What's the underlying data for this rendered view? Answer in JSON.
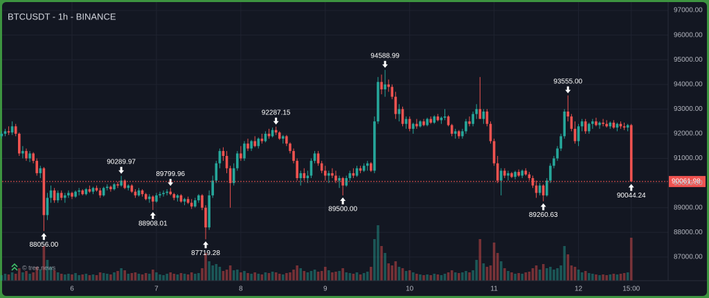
{
  "chart_data": {
    "type": "candlestick",
    "title": "BTCUSDT - 1h - BINANCE",
    "watermark": "© tree.news",
    "up_color": "#26a69a",
    "down_color": "#ef5350",
    "grid": true,
    "ylim": [
      86040,
      97340
    ],
    "yticks": [
      {
        "value": 87000,
        "label": "87000.00"
      },
      {
        "value": 88000,
        "label": "88000.00"
      },
      {
        "value": 89000,
        "label": "89000.00"
      },
      {
        "value": 90000,
        "label": "90000.00"
      },
      {
        "value": 91000,
        "label": "91000.00"
      },
      {
        "value": 92000,
        "label": "92000.00"
      },
      {
        "value": 93000,
        "label": "93000.00"
      },
      {
        "value": 94000,
        "label": "94000.00"
      },
      {
        "value": 95000,
        "label": "95000.00"
      },
      {
        "value": 96000,
        "label": "96000.00"
      },
      {
        "value": 97000,
        "label": "97000.00"
      }
    ],
    "xticks": [
      {
        "at": 20,
        "label": "6"
      },
      {
        "at": 44,
        "label": "7"
      },
      {
        "at": 68,
        "label": "8"
      },
      {
        "at": 92,
        "label": "9"
      },
      {
        "at": 116,
        "label": "10"
      },
      {
        "at": 140,
        "label": "11"
      },
      {
        "at": 164,
        "label": "12"
      },
      {
        "at": 179,
        "label": "15:00"
      }
    ],
    "last_label": "90061.98",
    "extremes": [
      {
        "at": 12,
        "side": "low",
        "label": "88056.00"
      },
      {
        "at": 34,
        "side": "high",
        "label": "90289.97"
      },
      {
        "at": 43,
        "side": "low",
        "label": "88908.01"
      },
      {
        "at": 48,
        "side": "high",
        "label": "89799.96"
      },
      {
        "at": 58,
        "side": "low",
        "label": "87719.28"
      },
      {
        "at": 78,
        "side": "high",
        "label": "92287.15"
      },
      {
        "at": 97,
        "side": "low",
        "label": "89500.00"
      },
      {
        "at": 109,
        "side": "high",
        "label": "94588.99"
      },
      {
        "at": 154,
        "side": "low",
        "label": "89260.63"
      },
      {
        "at": 161,
        "side": "high",
        "label": "93555.00"
      },
      {
        "at": 179,
        "side": "low",
        "label": "90044.24"
      }
    ],
    "candles": [
      [
        91900,
        92100,
        91800,
        92000,
        8
      ],
      [
        92000,
        92200,
        91900,
        92100,
        10
      ],
      [
        92100,
        92300,
        91950,
        92050,
        9
      ],
      [
        92050,
        92500,
        91950,
        92300,
        12
      ],
      [
        92300,
        92400,
        91900,
        92000,
        10
      ],
      [
        92000,
        92050,
        91100,
        91200,
        18
      ],
      [
        91200,
        91500,
        91000,
        91300,
        12
      ],
      [
        91300,
        91400,
        90900,
        91000,
        14
      ],
      [
        91000,
        91300,
        90850,
        91200,
        10
      ],
      [
        91200,
        91250,
        90800,
        90900,
        12
      ],
      [
        90900,
        91000,
        90300,
        90400,
        20
      ],
      [
        90400,
        90700,
        90200,
        90600,
        16
      ],
      [
        90600,
        90650,
        88056,
        88700,
        50
      ],
      [
        88700,
        89600,
        88500,
        89400,
        30
      ],
      [
        89400,
        89900,
        89200,
        89700,
        20
      ],
      [
        89700,
        89800,
        89200,
        89300,
        15
      ],
      [
        89300,
        89700,
        89200,
        89600,
        12
      ],
      [
        89600,
        89700,
        89300,
        89400,
        10
      ],
      [
        89400,
        89600,
        89200,
        89500,
        9
      ],
      [
        89500,
        89700,
        89400,
        89600,
        10
      ],
      [
        89600,
        89650,
        89350,
        89450,
        9
      ],
      [
        89450,
        89700,
        89400,
        89650,
        11
      ],
      [
        89650,
        89800,
        89500,
        89700,
        8
      ],
      [
        89700,
        89750,
        89500,
        89550,
        9
      ],
      [
        89550,
        89800,
        89500,
        89750,
        10
      ],
      [
        89750,
        89900,
        89600,
        89650,
        8
      ],
      [
        89650,
        89850,
        89550,
        89800,
        9
      ],
      [
        89800,
        89900,
        89650,
        89700,
        8
      ],
      [
        89700,
        89800,
        89400,
        89500,
        12
      ],
      [
        89500,
        89850,
        89450,
        89800,
        11
      ],
      [
        89800,
        89950,
        89700,
        89850,
        10
      ],
      [
        89850,
        89900,
        89650,
        89750,
        9
      ],
      [
        89750,
        90000,
        89700,
        89950,
        12
      ],
      [
        89950,
        90050,
        89800,
        89900,
        14
      ],
      [
        89900,
        90289.97,
        89850,
        90100,
        18
      ],
      [
        90100,
        90150,
        89750,
        89800,
        15
      ],
      [
        89800,
        89950,
        89700,
        89900,
        10
      ],
      [
        89900,
        89950,
        89600,
        89650,
        11
      ],
      [
        89650,
        89750,
        89400,
        89500,
        12
      ],
      [
        89500,
        89800,
        89450,
        89700,
        10
      ],
      [
        89700,
        89750,
        89450,
        89550,
        9
      ],
      [
        89550,
        89600,
        89300,
        89350,
        11
      ],
      [
        89350,
        89550,
        89200,
        89450,
        10
      ],
      [
        89450,
        89500,
        88908.01,
        89250,
        16
      ],
      [
        89250,
        89600,
        89200,
        89500,
        12
      ],
      [
        89500,
        89650,
        89400,
        89550,
        9
      ],
      [
        89550,
        89700,
        89450,
        89600,
        8
      ],
      [
        89600,
        89750,
        89500,
        89650,
        10
      ],
      [
        89650,
        89799.96,
        89500,
        89550,
        12
      ],
      [
        89550,
        89600,
        89300,
        89400,
        10
      ],
      [
        89400,
        89550,
        89250,
        89500,
        9
      ],
      [
        89500,
        89550,
        89200,
        89250,
        11
      ],
      [
        89250,
        89400,
        89100,
        89350,
        10
      ],
      [
        89350,
        89450,
        89150,
        89200,
        9
      ],
      [
        89200,
        89350,
        88950,
        89050,
        12
      ],
      [
        89050,
        89400,
        89000,
        89300,
        10
      ],
      [
        89300,
        89550,
        89200,
        89500,
        11
      ],
      [
        89500,
        89550,
        88900,
        89000,
        18
      ],
      [
        89000,
        89100,
        87719.28,
        88200,
        40
      ],
      [
        88200,
        89700,
        88100,
        89500,
        28
      ],
      [
        89500,
        90300,
        89400,
        90100,
        22
      ],
      [
        90100,
        90900,
        90000,
        90800,
        24
      ],
      [
        90800,
        91400,
        90600,
        91300,
        20
      ],
      [
        91300,
        91450,
        90900,
        91100,
        14
      ],
      [
        91100,
        91300,
        90400,
        90600,
        16
      ],
      [
        90600,
        90700,
        89000,
        90000,
        22
      ],
      [
        90000,
        90800,
        89900,
        90600,
        15
      ],
      [
        90600,
        91300,
        90500,
        91200,
        16
      ],
      [
        91200,
        91500,
        90900,
        91000,
        12
      ],
      [
        91000,
        91700,
        90900,
        91600,
        14
      ],
      [
        91600,
        91800,
        91300,
        91400,
        11
      ],
      [
        91400,
        91750,
        91300,
        91700,
        10
      ],
      [
        91700,
        91900,
        91450,
        91500,
        12
      ],
      [
        91500,
        91850,
        91400,
        91800,
        10
      ],
      [
        91800,
        92000,
        91600,
        91700,
        9
      ],
      [
        91700,
        92100,
        91650,
        92000,
        12
      ],
      [
        92000,
        92200,
        91800,
        91900,
        11
      ],
      [
        91900,
        92250,
        91850,
        92150,
        13
      ],
      [
        92150,
        92287.15,
        91950,
        92050,
        12
      ],
      [
        92050,
        92100,
        91750,
        91800,
        10
      ],
      [
        91800,
        91950,
        91600,
        91900,
        9
      ],
      [
        91900,
        91950,
        91500,
        91600,
        11
      ],
      [
        91600,
        91650,
        91200,
        91300,
        12
      ],
      [
        91300,
        91400,
        90800,
        90900,
        16
      ],
      [
        90900,
        91000,
        90100,
        90200,
        22
      ],
      [
        90200,
        90500,
        89900,
        90400,
        18
      ],
      [
        90400,
        90600,
        90100,
        90200,
        14
      ],
      [
        90200,
        90500,
        90000,
        90300,
        12
      ],
      [
        90300,
        91000,
        90200,
        90900,
        14
      ],
      [
        90900,
        91300,
        90800,
        91200,
        16
      ],
      [
        91200,
        91300,
        90700,
        90800,
        13
      ],
      [
        90800,
        90900,
        90400,
        90500,
        14
      ],
      [
        90500,
        90700,
        90100,
        90300,
        20
      ],
      [
        90300,
        90500,
        90000,
        90400,
        15
      ],
      [
        90400,
        90600,
        90200,
        90300,
        12
      ],
      [
        90300,
        90500,
        90000,
        90100,
        13
      ],
      [
        90100,
        90300,
        89800,
        90200,
        14
      ],
      [
        90200,
        90250,
        89500,
        89900,
        18
      ],
      [
        89900,
        90300,
        89850,
        90200,
        12
      ],
      [
        90200,
        90500,
        90100,
        90400,
        11
      ],
      [
        90400,
        90600,
        90200,
        90300,
        10
      ],
      [
        90300,
        90700,
        90250,
        90600,
        12
      ],
      [
        90600,
        90700,
        90400,
        90500,
        9
      ],
      [
        90500,
        90800,
        90450,
        90700,
        11
      ],
      [
        90700,
        90900,
        90500,
        90800,
        13
      ],
      [
        90800,
        90850,
        90450,
        90500,
        20
      ],
      [
        90500,
        92700,
        90400,
        92500,
        60
      ],
      [
        92500,
        94300,
        92400,
        94100,
        80
      ],
      [
        94100,
        94400,
        93600,
        93800,
        50
      ],
      [
        93800,
        94588.99,
        93500,
        94000,
        40
      ],
      [
        94000,
        94200,
        93700,
        93900,
        25
      ],
      [
        93900,
        94000,
        93400,
        93500,
        22
      ],
      [
        93500,
        93700,
        92600,
        92800,
        28
      ],
      [
        92800,
        93200,
        92500,
        93000,
        20
      ],
      [
        93000,
        93100,
        92300,
        92400,
        18
      ],
      [
        92400,
        92700,
        92200,
        92600,
        14
      ],
      [
        92600,
        92700,
        92100,
        92200,
        15
      ],
      [
        92200,
        92450,
        92000,
        92400,
        12
      ],
      [
        92400,
        92600,
        92200,
        92300,
        10
      ],
      [
        92300,
        92550,
        92250,
        92500,
        9
      ],
      [
        92500,
        92600,
        92300,
        92350,
        8
      ],
      [
        92350,
        92650,
        92300,
        92600,
        9
      ],
      [
        92600,
        92700,
        92400,
        92450,
        8
      ],
      [
        92450,
        92750,
        92400,
        92700,
        10
      ],
      [
        92700,
        92800,
        92500,
        92550,
        9
      ],
      [
        92550,
        92700,
        92400,
        92650,
        8
      ],
      [
        92650,
        93000,
        92550,
        92700,
        10
      ],
      [
        92700,
        92750,
        92300,
        92350,
        12
      ],
      [
        92350,
        92400,
        91900,
        92000,
        15
      ],
      [
        92000,
        92200,
        91800,
        92100,
        12
      ],
      [
        92100,
        92150,
        91800,
        91900,
        11
      ],
      [
        91900,
        92200,
        91800,
        92100,
        12
      ],
      [
        92100,
        92600,
        92000,
        92500,
        14
      ],
      [
        92500,
        92700,
        92300,
        92400,
        12
      ],
      [
        92400,
        92900,
        92300,
        92800,
        15
      ],
      [
        92800,
        93200,
        92600,
        93000,
        30
      ],
      [
        93000,
        94300,
        92700,
        92600,
        60
      ],
      [
        92600,
        93000,
        92400,
        92900,
        25
      ],
      [
        92900,
        93000,
        92300,
        92400,
        20
      ],
      [
        92400,
        92500,
        91600,
        91700,
        22
      ],
      [
        91700,
        91800,
        90700,
        90800,
        55
      ],
      [
        90800,
        91100,
        90000,
        90100,
        40
      ],
      [
        90100,
        90600,
        89500,
        90500,
        28
      ],
      [
        90500,
        90600,
        90200,
        90300,
        18
      ],
      [
        90300,
        90500,
        90100,
        90400,
        14
      ],
      [
        90400,
        90450,
        90200,
        90250,
        12
      ],
      [
        90250,
        90500,
        90150,
        90450,
        10
      ],
      [
        90450,
        90550,
        90250,
        90300,
        11
      ],
      [
        90300,
        90550,
        90200,
        90500,
        10
      ],
      [
        90500,
        90600,
        90300,
        90350,
        12
      ],
      [
        90350,
        90450,
        90100,
        90200,
        13
      ],
      [
        90200,
        90300,
        89800,
        89900,
        18
      ],
      [
        89900,
        90100,
        89400,
        89600,
        22
      ],
      [
        89600,
        90000,
        89500,
        89900,
        16
      ],
      [
        89900,
        89950,
        89260.63,
        89500,
        24
      ],
      [
        89500,
        90200,
        89450,
        90100,
        18
      ],
      [
        90100,
        90800,
        90000,
        90700,
        20
      ],
      [
        90700,
        91100,
        90600,
        91000,
        16
      ],
      [
        91000,
        91500,
        90900,
        91400,
        18
      ],
      [
        91400,
        92000,
        91300,
        91900,
        22
      ],
      [
        91900,
        93000,
        91800,
        92900,
        50
      ],
      [
        92900,
        93555,
        92500,
        92700,
        38
      ],
      [
        92700,
        92800,
        92100,
        92200,
        22
      ],
      [
        92200,
        92500,
        91600,
        91700,
        20
      ],
      [
        91700,
        92400,
        91500,
        92300,
        16
      ],
      [
        92300,
        92600,
        92100,
        92500,
        12
      ],
      [
        92500,
        92600,
        92000,
        92100,
        14
      ],
      [
        92100,
        92450,
        92000,
        92400,
        11
      ],
      [
        92400,
        92600,
        92200,
        92500,
        10
      ],
      [
        92500,
        92650,
        92300,
        92350,
        9
      ],
      [
        92350,
        92500,
        92200,
        92450,
        8
      ],
      [
        92450,
        92600,
        92300,
        92400,
        9
      ],
      [
        92400,
        92550,
        92250,
        92300,
        8
      ],
      [
        92300,
        92500,
        92200,
        92450,
        9
      ],
      [
        92450,
        92550,
        92200,
        92250,
        10
      ],
      [
        92250,
        92450,
        92100,
        92400,
        9
      ],
      [
        92400,
        92500,
        92200,
        92300,
        10
      ],
      [
        92300,
        92450,
        92150,
        92250,
        11
      ],
      [
        92250,
        92400,
        92100,
        92350,
        12
      ],
      [
        92350,
        92400,
        90044.24,
        90061.98,
        62
      ]
    ]
  }
}
